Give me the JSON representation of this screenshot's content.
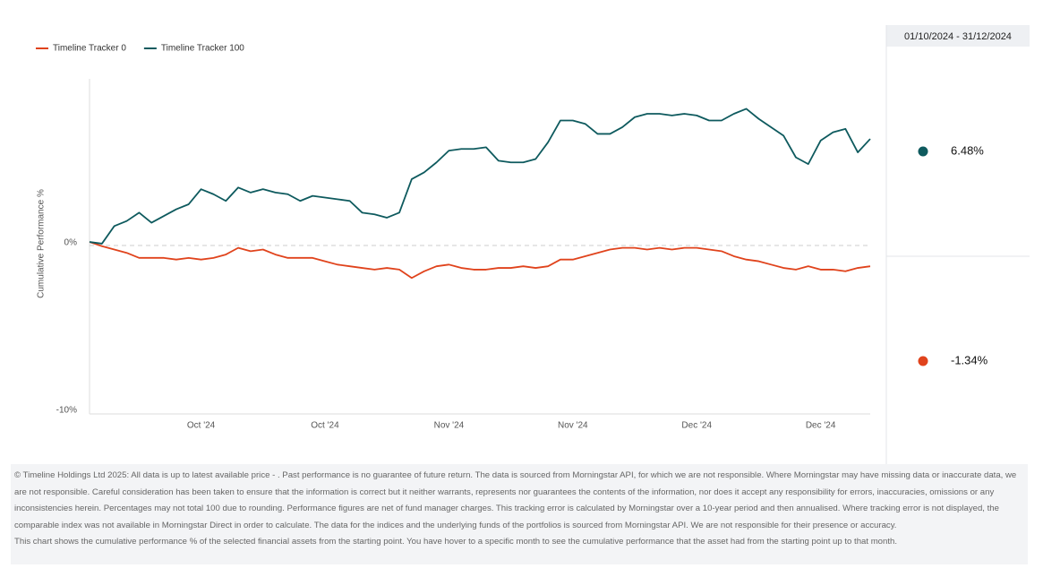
{
  "chart_data": {
    "type": "line",
    "y_label": "Cumulative Performance %",
    "categories": [
      null,
      null,
      null,
      null,
      null,
      null,
      null,
      null,
      null,
      "Oct '24",
      null,
      null,
      null,
      null,
      null,
      null,
      null,
      null,
      null,
      "Oct '24",
      null,
      null,
      null,
      null,
      null,
      null,
      null,
      null,
      null,
      "Nov '24",
      null,
      null,
      null,
      null,
      null,
      null,
      null,
      null,
      null,
      "Nov '24",
      null,
      null,
      null,
      null,
      null,
      null,
      null,
      null,
      null,
      "Dec '24",
      null,
      null,
      null,
      null,
      null,
      null,
      null,
      null,
      null,
      "Dec '24",
      null,
      null,
      null,
      null
    ],
    "series": [
      {
        "name": "Timeline Tracker 0",
        "color": "#e0431c",
        "values": [
          0.05,
          -0.2,
          -0.4,
          -0.6,
          -0.9,
          -0.9,
          -0.9,
          -1.0,
          -0.9,
          -1.0,
          -0.9,
          -0.7,
          -0.3,
          -0.5,
          -0.4,
          -0.7,
          -0.9,
          -0.9,
          -0.9,
          -1.1,
          -1.3,
          -1.4,
          -1.5,
          -1.6,
          -1.5,
          -1.6,
          -2.1,
          -1.7,
          -1.4,
          -1.3,
          -1.5,
          -1.6,
          -1.6,
          -1.5,
          -1.5,
          -1.4,
          -1.5,
          -1.4,
          -1.0,
          -1.0,
          -0.8,
          -0.6,
          -0.4,
          -0.3,
          -0.3,
          -0.4,
          -0.3,
          -0.4,
          -0.3,
          -0.3,
          -0.4,
          -0.5,
          -0.8,
          -1.0,
          -1.1,
          -1.3,
          -1.5,
          -1.6,
          -1.4,
          -1.6,
          -1.6,
          -1.7,
          -1.5,
          -1.4
        ]
      },
      {
        "name": "Timeline Tracker 100",
        "color": "#0e5a5e",
        "values": [
          0.05,
          -0.05,
          1.0,
          1.3,
          1.8,
          1.2,
          1.6,
          2.0,
          2.3,
          3.2,
          2.9,
          2.5,
          3.3,
          3.0,
          3.2,
          3.0,
          2.9,
          2.5,
          2.8,
          2.7,
          2.6,
          2.5,
          1.8,
          1.7,
          1.5,
          1.8,
          3.8,
          4.2,
          4.8,
          5.5,
          5.6,
          5.6,
          5.7,
          4.9,
          4.8,
          4.8,
          5.0,
          6.0,
          7.3,
          7.3,
          7.1,
          6.5,
          6.5,
          6.9,
          7.5,
          7.7,
          7.7,
          7.6,
          7.7,
          7.6,
          7.3,
          7.3,
          7.7,
          8.0,
          7.4,
          6.9,
          6.4,
          5.1,
          4.7,
          6.1,
          6.6,
          6.8,
          5.4,
          6.2
        ]
      }
    ],
    "ylim": [
      -10,
      10
    ],
    "yticks": [
      {
        "value": 0,
        "label": "0%"
      },
      {
        "value": -10,
        "label": "-10%"
      }
    ],
    "zero_line": true
  },
  "panel": {
    "period": "01/10/2024 - 31/12/2024",
    "items": [
      {
        "label": "6.48%",
        "color": "#0e5a5e"
      },
      {
        "label": "-1.34%",
        "color": "#e0431c"
      }
    ]
  },
  "footer": {
    "disclaimer": "© Timeline Holdings Ltd 2025: All data is up to latest available price - . Past performance is no guarantee of future return. The data is sourced from Morningstar API, for which we are not responsible. Where Morningstar may have missing data or inaccurate data, we are not responsible. Careful consideration has been taken to ensure that the information is correct but it neither warrants, represents nor guarantees the contents of the information, nor does it accept any responsibility for errors, inaccuracies, omissions or any inconsistencies herein. Percentages may not total 100 due to rounding. Performance figures are net of fund manager charges. This tracking error is calculated by Morningstar over a 10-year period and then annualised. Where tracking error is not displayed, the comparable index was not available in Morningstar Direct in order to calculate. The data for the indices and the underlying funds of the portfolios is sourced from Morningstar API. We are not responsible for their presence or accuracy.",
    "note": "This chart shows the cumulative performance % of the selected financial assets from the starting point. You have hover to a specific month to see the cumulative performance that the asset had from the starting point up to that month."
  }
}
